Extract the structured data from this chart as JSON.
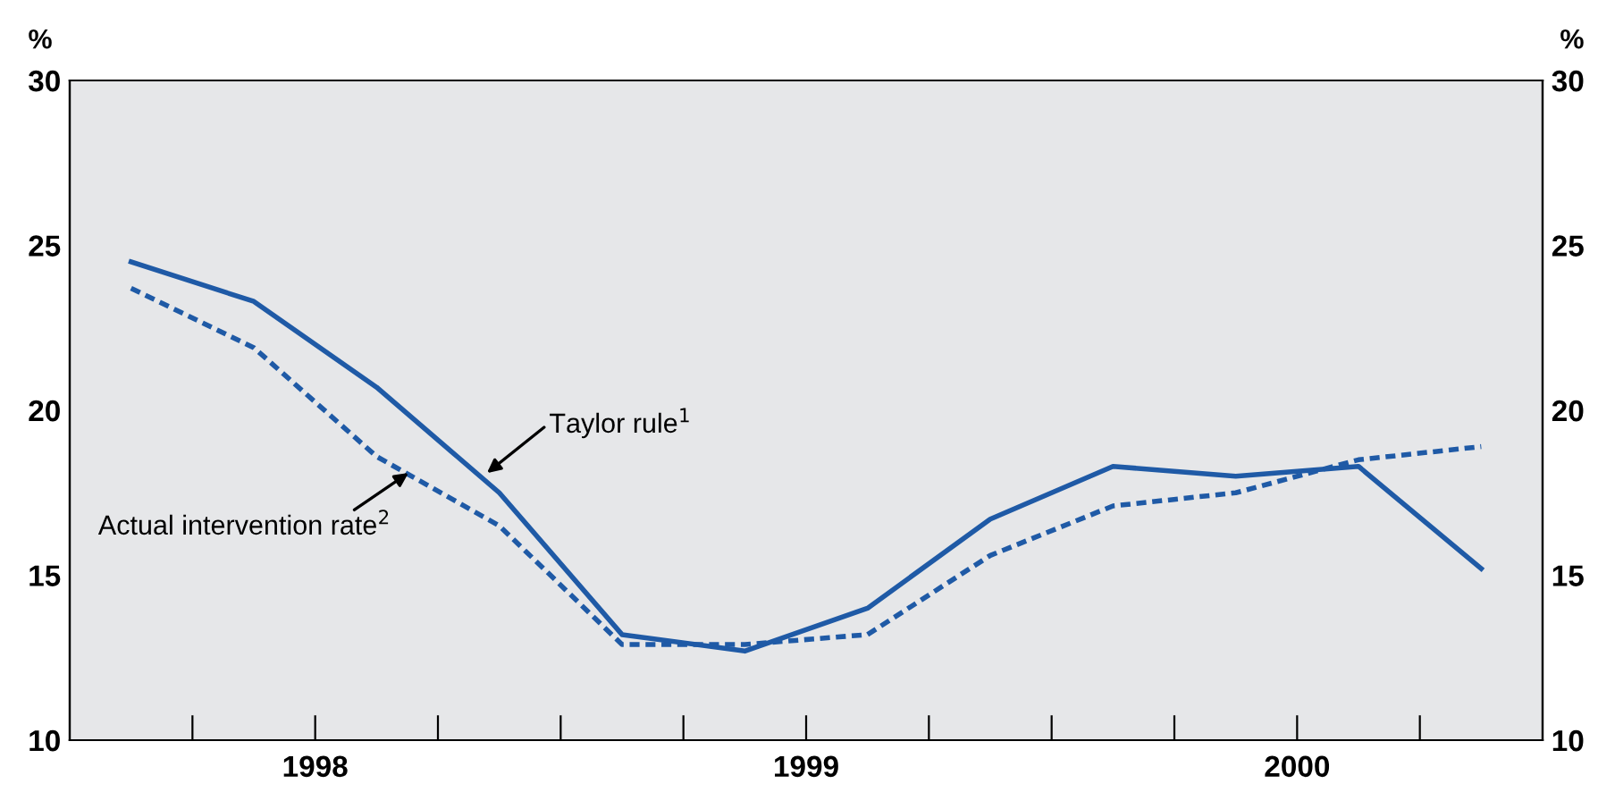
{
  "chart_data": {
    "type": "line",
    "ylabel": "%",
    "y2label": "%",
    "x": [
      1998.125,
      1998.375,
      1998.625,
      1998.875,
      1999.125,
      1999.375,
      1999.625,
      1999.875,
      2000.125,
      2000.375,
      2000.625,
      2000.875
    ],
    "series": [
      {
        "color": "#1f5aa6",
        "line_style": "solid",
        "values": [
          24.5,
          23.3,
          20.7,
          17.5,
          13.2,
          12.7,
          14.0,
          16.7,
          18.3,
          18.0,
          18.3,
          15.2
        ]
      },
      {
        "color": "#1f5aa6",
        "line_style": "dotted",
        "values": [
          23.7,
          21.9,
          18.6,
          16.5,
          12.9,
          12.9,
          13.2,
          15.6,
          17.1,
          17.5,
          18.5,
          18.9
        ]
      }
    ],
    "annotations": [
      {
        "text": "Taylor rule$^{1}$",
        "x": 1998.85,
        "y": 18.1
      },
      {
        "text": "Actual intervention rate$^{2}$",
        "x": 1998.69,
        "y": 18.1
      }
    ],
    "xlim": [
      1998,
      2001
    ],
    "xticks": [
      {
        "value": 1998.25,
        "label": null
      },
      {
        "value": 1998.5,
        "label": "1998"
      },
      {
        "value": 1998.75,
        "label": null
      },
      {
        "value": 1999,
        "label": null
      },
      {
        "value": 1999.25,
        "label": null
      },
      {
        "value": 1999.5,
        "label": "1999"
      },
      {
        "value": 1999.75,
        "label": null
      },
      {
        "value": 2000,
        "label": null
      },
      {
        "value": 2000.25,
        "label": null
      },
      {
        "value": 2000.5,
        "label": "2000"
      },
      {
        "value": 2000.75,
        "label": null
      }
    ],
    "ylim": [
      10,
      30
    ],
    "yticks": [
      10,
      15,
      20,
      25,
      30
    ],
    "y2lim": [
      10,
      30
    ],
    "y2ticks": [
      10,
      15,
      20,
      25,
      30
    ],
    "grid": false,
    "legend": false,
    "marker": "none"
  }
}
